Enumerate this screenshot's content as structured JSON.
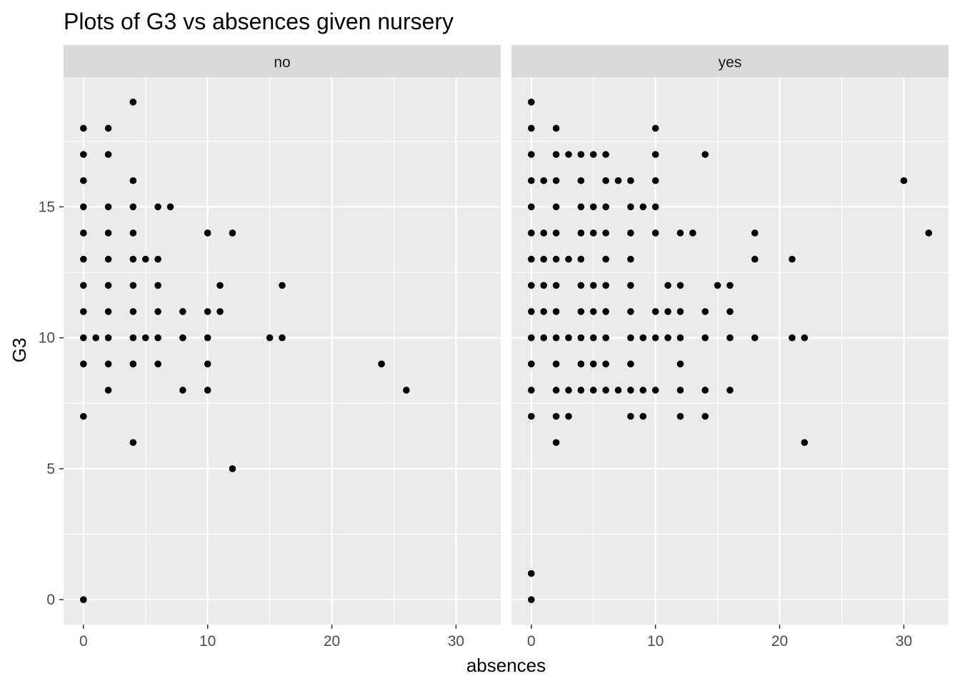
{
  "chart_data": {
    "type": "scatter",
    "title": "Plots of G3 vs absences given nursery",
    "xlabel": "absences",
    "ylabel": "G3",
    "facet_variable": "nursery",
    "xlim": [
      -1.6,
      33.6
    ],
    "ylim": [
      -0.95,
      19.95
    ],
    "x_ticks": [
      0,
      10,
      20,
      30
    ],
    "y_ticks": [
      0,
      5,
      10,
      15
    ],
    "grid": true,
    "point_color": "#000000",
    "panel_background": "#ebebeb",
    "strip_background": "#d9d9d9",
    "panels": [
      {
        "facet_label": "no",
        "points": [
          [
            0,
            0
          ],
          [
            0,
            7
          ],
          [
            0,
            9
          ],
          [
            0,
            10
          ],
          [
            0,
            11
          ],
          [
            0,
            12
          ],
          [
            0,
            13
          ],
          [
            0,
            14
          ],
          [
            0,
            15
          ],
          [
            0,
            16
          ],
          [
            0,
            17
          ],
          [
            0,
            18
          ],
          [
            1,
            10
          ],
          [
            2,
            8
          ],
          [
            2,
            9
          ],
          [
            2,
            10
          ],
          [
            2,
            11
          ],
          [
            2,
            12
          ],
          [
            2,
            13
          ],
          [
            2,
            14
          ],
          [
            2,
            15
          ],
          [
            2,
            17
          ],
          [
            2,
            18
          ],
          [
            4,
            6
          ],
          [
            4,
            9
          ],
          [
            4,
            10
          ],
          [
            4,
            11
          ],
          [
            4,
            12
          ],
          [
            4,
            13
          ],
          [
            4,
            14
          ],
          [
            4,
            15
          ],
          [
            4,
            16
          ],
          [
            4,
            19
          ],
          [
            5,
            10
          ],
          [
            5,
            13
          ],
          [
            6,
            9
          ],
          [
            6,
            10
          ],
          [
            6,
            11
          ],
          [
            6,
            12
          ],
          [
            6,
            13
          ],
          [
            6,
            15
          ],
          [
            7,
            15
          ],
          [
            8,
            8
          ],
          [
            8,
            10
          ],
          [
            8,
            11
          ],
          [
            10,
            8
          ],
          [
            10,
            9
          ],
          [
            10,
            10
          ],
          [
            10,
            11
          ],
          [
            10,
            14
          ],
          [
            11,
            11
          ],
          [
            11,
            12
          ],
          [
            12,
            5
          ],
          [
            12,
            14
          ],
          [
            15,
            10
          ],
          [
            16,
            10
          ],
          [
            16,
            12
          ],
          [
            24,
            9
          ],
          [
            26,
            8
          ]
        ]
      },
      {
        "facet_label": "yes",
        "points": [
          [
            0,
            0
          ],
          [
            0,
            1
          ],
          [
            0,
            7
          ],
          [
            0,
            8
          ],
          [
            0,
            9
          ],
          [
            0,
            10
          ],
          [
            0,
            11
          ],
          [
            0,
            12
          ],
          [
            0,
            13
          ],
          [
            0,
            14
          ],
          [
            0,
            15
          ],
          [
            0,
            16
          ],
          [
            0,
            17
          ],
          [
            0,
            18
          ],
          [
            0,
            19
          ],
          [
            1,
            10
          ],
          [
            1,
            11
          ],
          [
            1,
            12
          ],
          [
            1,
            13
          ],
          [
            1,
            14
          ],
          [
            1,
            16
          ],
          [
            2,
            6
          ],
          [
            2,
            7
          ],
          [
            2,
            8
          ],
          [
            2,
            9
          ],
          [
            2,
            10
          ],
          [
            2,
            11
          ],
          [
            2,
            12
          ],
          [
            2,
            13
          ],
          [
            2,
            14
          ],
          [
            2,
            15
          ],
          [
            2,
            16
          ],
          [
            2,
            17
          ],
          [
            2,
            18
          ],
          [
            3,
            7
          ],
          [
            3,
            8
          ],
          [
            3,
            10
          ],
          [
            3,
            13
          ],
          [
            3,
            17
          ],
          [
            4,
            8
          ],
          [
            4,
            9
          ],
          [
            4,
            10
          ],
          [
            4,
            11
          ],
          [
            4,
            12
          ],
          [
            4,
            13
          ],
          [
            4,
            14
          ],
          [
            4,
            15
          ],
          [
            4,
            16
          ],
          [
            4,
            17
          ],
          [
            5,
            8
          ],
          [
            5,
            9
          ],
          [
            5,
            10
          ],
          [
            5,
            11
          ],
          [
            5,
            12
          ],
          [
            5,
            14
          ],
          [
            5,
            15
          ],
          [
            5,
            17
          ],
          [
            6,
            8
          ],
          [
            6,
            9
          ],
          [
            6,
            10
          ],
          [
            6,
            11
          ],
          [
            6,
            12
          ],
          [
            6,
            13
          ],
          [
            6,
            14
          ],
          [
            6,
            15
          ],
          [
            6,
            16
          ],
          [
            6,
            17
          ],
          [
            7,
            8
          ],
          [
            7,
            16
          ],
          [
            8,
            7
          ],
          [
            8,
            8
          ],
          [
            8,
            9
          ],
          [
            8,
            10
          ],
          [
            8,
            11
          ],
          [
            8,
            12
          ],
          [
            8,
            13
          ],
          [
            8,
            14
          ],
          [
            8,
            15
          ],
          [
            8,
            16
          ],
          [
            9,
            7
          ],
          [
            9,
            8
          ],
          [
            9,
            10
          ],
          [
            9,
            15
          ],
          [
            10,
            8
          ],
          [
            10,
            10
          ],
          [
            10,
            11
          ],
          [
            10,
            14
          ],
          [
            10,
            15
          ],
          [
            10,
            16
          ],
          [
            10,
            17
          ],
          [
            10,
            18
          ],
          [
            11,
            10
          ],
          [
            11,
            11
          ],
          [
            11,
            12
          ],
          [
            12,
            7
          ],
          [
            12,
            8
          ],
          [
            12,
            9
          ],
          [
            12,
            10
          ],
          [
            12,
            11
          ],
          [
            12,
            12
          ],
          [
            12,
            14
          ],
          [
            13,
            14
          ],
          [
            14,
            7
          ],
          [
            14,
            8
          ],
          [
            14,
            10
          ],
          [
            14,
            11
          ],
          [
            14,
            17
          ],
          [
            15,
            12
          ],
          [
            16,
            8
          ],
          [
            16,
            10
          ],
          [
            16,
            11
          ],
          [
            16,
            12
          ],
          [
            18,
            10
          ],
          [
            18,
            13
          ],
          [
            18,
            14
          ],
          [
            21,
            10
          ],
          [
            21,
            13
          ],
          [
            22,
            6
          ],
          [
            22,
            10
          ],
          [
            30,
            16
          ],
          [
            32,
            14
          ]
        ]
      }
    ]
  }
}
